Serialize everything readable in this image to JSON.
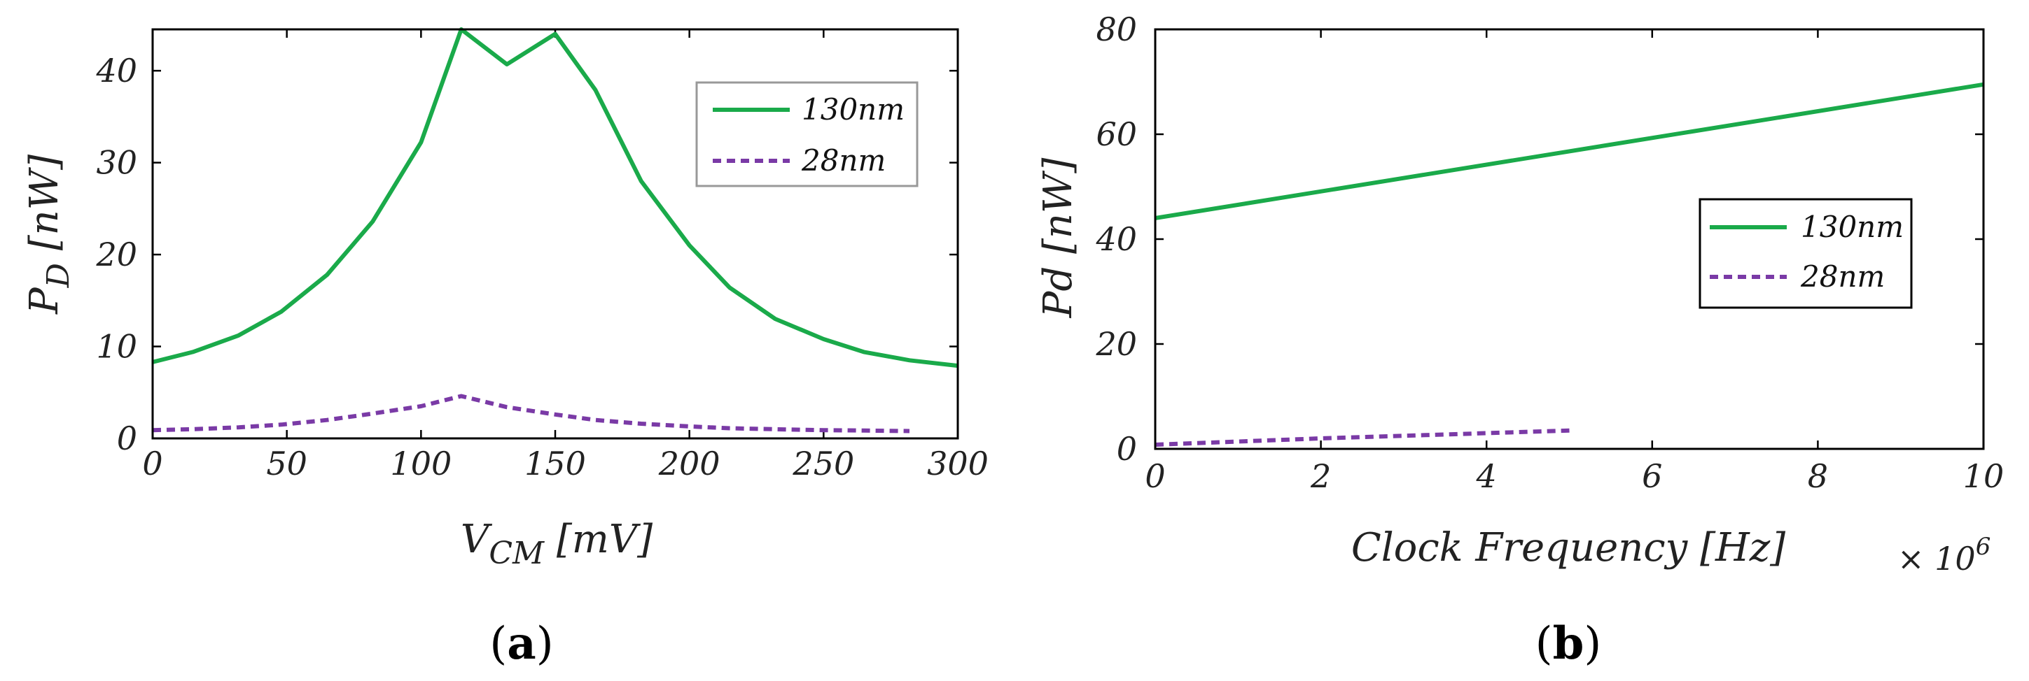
{
  "chart_data": [
    {
      "type": "line",
      "panel": "a",
      "caption_open": "(",
      "caption_letter": "a",
      "caption_close": ")",
      "xlabel_main": "V",
      "xlabel_sub": "CM",
      "xlabel_unit": " [mV]",
      "ylabel_main": "P",
      "ylabel_sub": "D",
      "ylabel_unit": " [nW]",
      "xlim": [
        0,
        300
      ],
      "ylim": [
        0,
        44.5
      ],
      "xticks": [
        0,
        50,
        100,
        150,
        200,
        250,
        300
      ],
      "yticks": [
        0,
        10,
        20,
        30,
        40
      ],
      "legend_position": "top-right",
      "legend_framed": true,
      "series": [
        {
          "name": "130nm",
          "color": "#1aaa4a",
          "style": "solid",
          "x": [
            0,
            15,
            32,
            48,
            65,
            82,
            100,
            115,
            132,
            150,
            165,
            182,
            200,
            215,
            232,
            250,
            265,
            282,
            300
          ],
          "y": [
            8.3,
            9.4,
            11.2,
            13.8,
            17.8,
            23.6,
            32.2,
            44.5,
            40.7,
            44.0,
            37.9,
            28.0,
            21.0,
            16.4,
            13.0,
            10.8,
            9.4,
            8.5,
            7.9
          ]
        },
        {
          "name": "28nm",
          "color": "#7a3aa6",
          "style": "dashed",
          "x": [
            0,
            15,
            32,
            48,
            65,
            82,
            100,
            115,
            132,
            150,
            165,
            182,
            200,
            215,
            232,
            250,
            265,
            282
          ],
          "y": [
            0.9,
            1.0,
            1.2,
            1.5,
            2.0,
            2.7,
            3.5,
            4.6,
            3.4,
            2.6,
            2.0,
            1.6,
            1.3,
            1.1,
            1.0,
            0.9,
            0.85,
            0.8
          ]
        }
      ]
    },
    {
      "type": "line",
      "panel": "b",
      "caption_open": "(",
      "caption_letter": "b",
      "caption_close": ")",
      "xlabel": "Clock Frequency [Hz]",
      "x_multiplier_base": "× 10",
      "x_multiplier_exp": "6",
      "ylabel": "Pd [nW]",
      "xlim": [
        0,
        10
      ],
      "ylim": [
        0,
        80
      ],
      "xticks": [
        0,
        2,
        4,
        6,
        8,
        10
      ],
      "yticks": [
        0,
        20,
        40,
        60,
        80
      ],
      "legend_position": "center-right",
      "legend_framed": true,
      "series": [
        {
          "name": "130nm",
          "color": "#1aaa4a",
          "style": "solid",
          "x": [
            0,
            10
          ],
          "y": [
            44.0,
            69.5
          ]
        },
        {
          "name": "28nm",
          "color": "#7a3aa6",
          "style": "dashed",
          "x": [
            0,
            1,
            2,
            3,
            4,
            5
          ],
          "y": [
            0.8,
            1.4,
            2.0,
            2.5,
            3.0,
            3.5
          ]
        }
      ]
    }
  ]
}
